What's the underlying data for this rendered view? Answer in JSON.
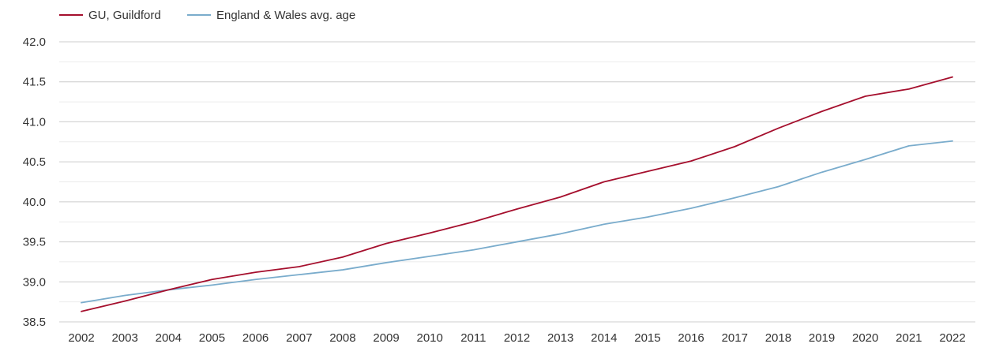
{
  "chart_data": {
    "type": "line",
    "title": "",
    "xlabel": "",
    "ylabel": "",
    "x": [
      "2002",
      "2003",
      "2004",
      "2005",
      "2006",
      "2007",
      "2008",
      "2009",
      "2010",
      "2011",
      "2012",
      "2013",
      "2014",
      "2015",
      "2016",
      "2017",
      "2018",
      "2019",
      "2020",
      "2021",
      "2022"
    ],
    "ylim": [
      38.5,
      42.0
    ],
    "y_ticks": [
      "38.5",
      "39.0",
      "39.5",
      "40.0",
      "40.5",
      "41.0",
      "41.5",
      "42.0"
    ],
    "grid": true,
    "legend_position": "top-left",
    "series": [
      {
        "name": "GU, Guildford",
        "color": "#a50f2d",
        "values": [
          38.63,
          38.76,
          38.9,
          39.03,
          39.12,
          39.19,
          39.31,
          39.48,
          39.61,
          39.75,
          39.91,
          40.06,
          40.25,
          40.38,
          40.51,
          40.69,
          40.92,
          41.13,
          41.32,
          41.41,
          41.56
        ]
      },
      {
        "name": "England & Wales avg. age",
        "color": "#7aaccc",
        "values": [
          38.74,
          38.83,
          38.9,
          38.96,
          39.03,
          39.09,
          39.15,
          39.24,
          39.32,
          39.4,
          39.5,
          39.6,
          39.72,
          39.81,
          39.92,
          40.05,
          40.19,
          40.37,
          40.53,
          40.7,
          40.76
        ]
      }
    ]
  }
}
